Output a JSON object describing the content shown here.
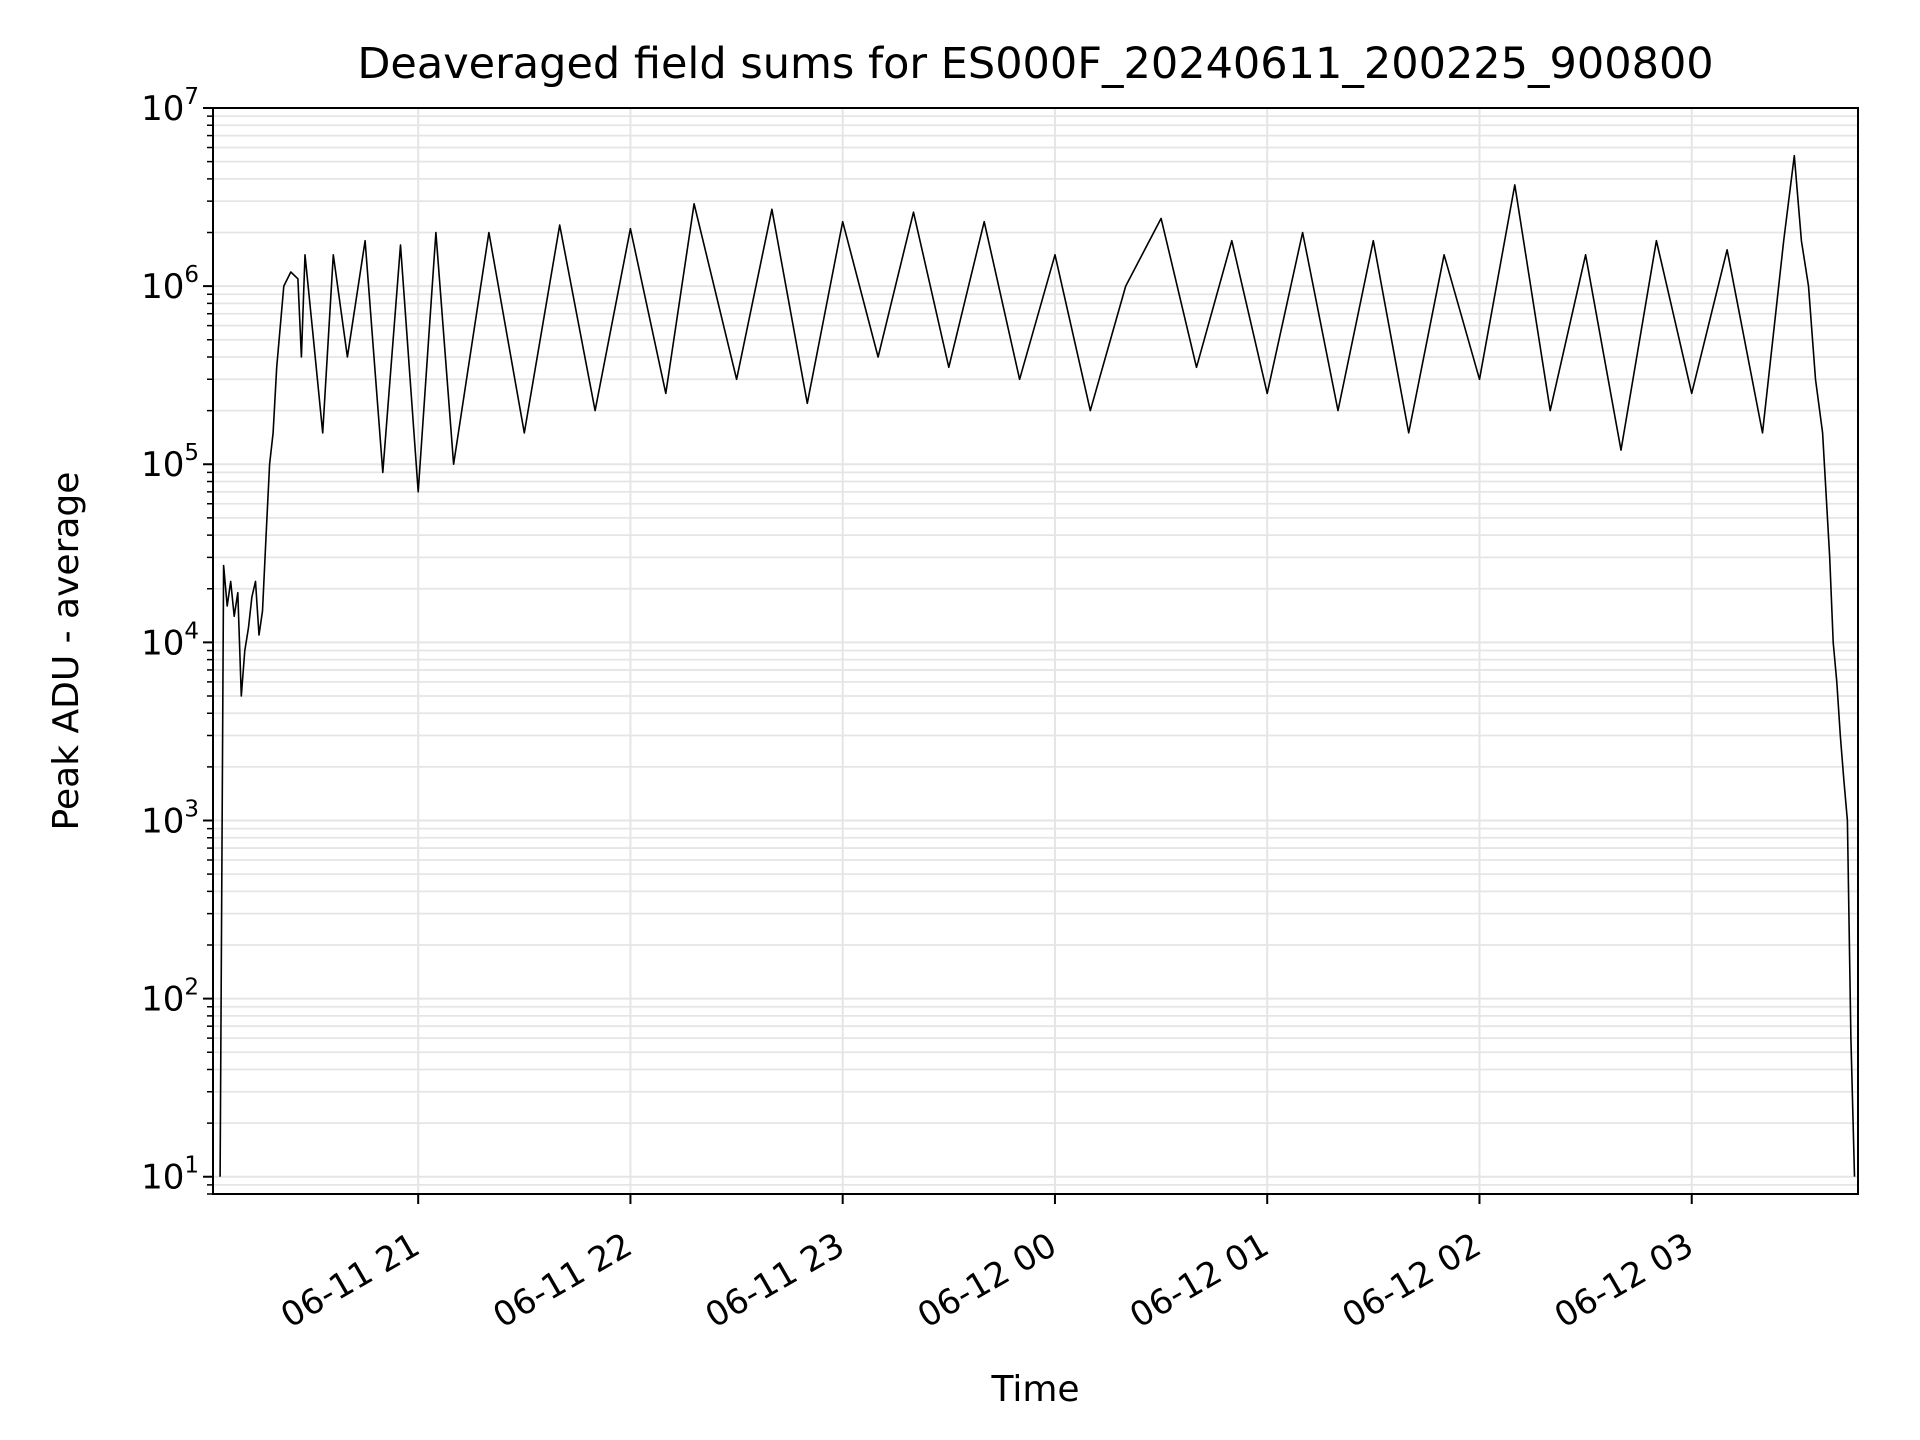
{
  "chart_data": {
    "type": "line",
    "title": "Deaveraged field sums for ES000F_20240611_200225_900800",
    "xlabel": "Time",
    "ylabel": "Peak ADU - average",
    "y_scale": "log",
    "ylim": [
      8,
      10000000
    ],
    "xlim": [
      "2024-06-11 20:02",
      "2024-06-12 03:47"
    ],
    "grid": true,
    "line_color": "#000000",
    "grid_color": "#e5e5e5",
    "x_ticks": [
      "2024-06-11 21:00",
      "2024-06-11 22:00",
      "2024-06-11 23:00",
      "2024-06-12 00:00",
      "2024-06-12 01:00",
      "2024-06-12 02:00",
      "2024-06-12 03:00"
    ],
    "x_tick_labels": [
      "06-11 21",
      "06-11 22",
      "06-11 23",
      "06-12 00",
      "06-12 01",
      "06-12 02",
      "06-12 03"
    ],
    "y_ticks": [
      10,
      100,
      1000,
      10000,
      100000,
      1000000,
      10000000
    ],
    "y_tick_bases": [
      "10",
      "10",
      "10",
      "10",
      "10",
      "10",
      "10"
    ],
    "y_tick_exponents": [
      "1",
      "2",
      "3",
      "4",
      "5",
      "6",
      "7"
    ],
    "series": [
      {
        "x": [
          "2024-06-11 20:04",
          "2024-06-11 20:05",
          "2024-06-11 20:06",
          "2024-06-11 20:07",
          "2024-06-11 20:08",
          "2024-06-11 20:09",
          "2024-06-11 20:10",
          "2024-06-11 20:11",
          "2024-06-11 20:12",
          "2024-06-11 20:13",
          "2024-06-11 20:14",
          "2024-06-11 20:15",
          "2024-06-11 20:16",
          "2024-06-11 20:17",
          "2024-06-11 20:18",
          "2024-06-11 20:19",
          "2024-06-11 20:20",
          "2024-06-11 20:22",
          "2024-06-11 20:24",
          "2024-06-11 20:26",
          "2024-06-11 20:27",
          "2024-06-11 20:28",
          "2024-06-11 20:30",
          "2024-06-11 20:33",
          "2024-06-11 20:36",
          "2024-06-11 20:40",
          "2024-06-11 20:45",
          "2024-06-11 20:50",
          "2024-06-11 20:55",
          "2024-06-11 21:00",
          "2024-06-11 21:05",
          "2024-06-11 21:10",
          "2024-06-11 21:20",
          "2024-06-11 21:30",
          "2024-06-11 21:40",
          "2024-06-11 21:50",
          "2024-06-11 22:00",
          "2024-06-11 22:10",
          "2024-06-11 22:18",
          "2024-06-11 22:30",
          "2024-06-11 22:40",
          "2024-06-11 22:50",
          "2024-06-11 23:00",
          "2024-06-11 23:10",
          "2024-06-11 23:20",
          "2024-06-11 23:30",
          "2024-06-11 23:40",
          "2024-06-11 23:50",
          "2024-06-12 00:00",
          "2024-06-12 00:10",
          "2024-06-12 00:20",
          "2024-06-12 00:30",
          "2024-06-12 00:40",
          "2024-06-12 00:50",
          "2024-06-12 01:00",
          "2024-06-12 01:10",
          "2024-06-12 01:20",
          "2024-06-12 01:30",
          "2024-06-12 01:40",
          "2024-06-12 01:50",
          "2024-06-12 02:00",
          "2024-06-12 02:10",
          "2024-06-12 02:20",
          "2024-06-12 02:30",
          "2024-06-12 02:40",
          "2024-06-12 02:50",
          "2024-06-12 03:00",
          "2024-06-12 03:10",
          "2024-06-12 03:20",
          "2024-06-12 03:26",
          "2024-06-12 03:29",
          "2024-06-12 03:31",
          "2024-06-12 03:33",
          "2024-06-12 03:35",
          "2024-06-12 03:37",
          "2024-06-12 03:39",
          "2024-06-12 03:40",
          "2024-06-12 03:41",
          "2024-06-12 03:42",
          "2024-06-12 03:43",
          "2024-06-12 03:44",
          "2024-06-12 03:45",
          "2024-06-12 03:46"
        ],
        "y": [
          10,
          27000,
          16000,
          22000,
          14000,
          19000,
          5000,
          9000,
          12000,
          18000,
          22000,
          11000,
          15000,
          40000,
          100000,
          150000,
          350000,
          1000000,
          1200000,
          1100000,
          400000,
          1500000,
          600000,
          150000,
          1500000,
          400000,
          1800000,
          90000,
          1700000,
          70000,
          2000000,
          100000,
          2000000,
          150000,
          2200000,
          200000,
          2100000,
          250000,
          2900000,
          300000,
          2700000,
          220000,
          2300000,
          400000,
          2600000,
          350000,
          2300000,
          300000,
          1500000,
          200000,
          1000000,
          2400000,
          350000,
          1800000,
          250000,
          2000000,
          200000,
          1800000,
          150000,
          1500000,
          300000,
          3700000,
          200000,
          1500000,
          120000,
          1800000,
          250000,
          1600000,
          150000,
          1800000,
          5400000,
          1800000,
          1000000,
          300000,
          150000,
          30000,
          10000,
          6000,
          3000,
          1700,
          1000,
          60,
          10
        ]
      }
    ]
  }
}
